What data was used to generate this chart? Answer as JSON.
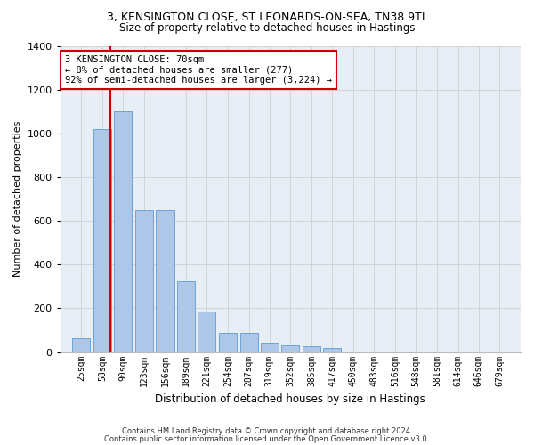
{
  "title1": "3, KENSINGTON CLOSE, ST LEONARDS-ON-SEA, TN38 9TL",
  "title2": "Size of property relative to detached houses in Hastings",
  "xlabel": "Distribution of detached houses by size in Hastings",
  "ylabel": "Number of detached properties",
  "annotation_line1": "3 KENSINGTON CLOSE: 70sqm",
  "annotation_line2": "← 8% of detached houses are smaller (277)",
  "annotation_line3": "92% of semi-detached houses are larger (3,224) →",
  "footer1": "Contains HM Land Registry data © Crown copyright and database right 2024.",
  "footer2": "Contains public sector information licensed under the Open Government Licence v3.0.",
  "property_size": 70,
  "categories": [
    25,
    58,
    90,
    123,
    156,
    189,
    221,
    254,
    287,
    319,
    352,
    385,
    417,
    450,
    483,
    516,
    548,
    581,
    614,
    646,
    679
  ],
  "values": [
    62,
    1020,
    1100,
    650,
    650,
    325,
    185,
    90,
    90,
    45,
    30,
    25,
    20,
    0,
    0,
    0,
    0,
    0,
    0,
    0,
    0
  ],
  "bar_color": "#aec6e8",
  "bar_edge_color": "#5b9bd5",
  "vline_color": "#cc0000",
  "annotation_box_color": "#cc0000",
  "background_color": "#ffffff",
  "grid_color": "#d0d0d0",
  "plot_bg_color": "#e8eef5",
  "ylim": [
    0,
    1400
  ],
  "yticks": [
    0,
    200,
    400,
    600,
    800,
    1000,
    1200,
    1400
  ],
  "title1_fontsize": 9,
  "title2_fontsize": 8.5,
  "ylabel_fontsize": 8,
  "xlabel_fontsize": 8.5,
  "tick_fontsize": 7,
  "footer_fontsize": 6,
  "annotation_fontsize": 7.5
}
